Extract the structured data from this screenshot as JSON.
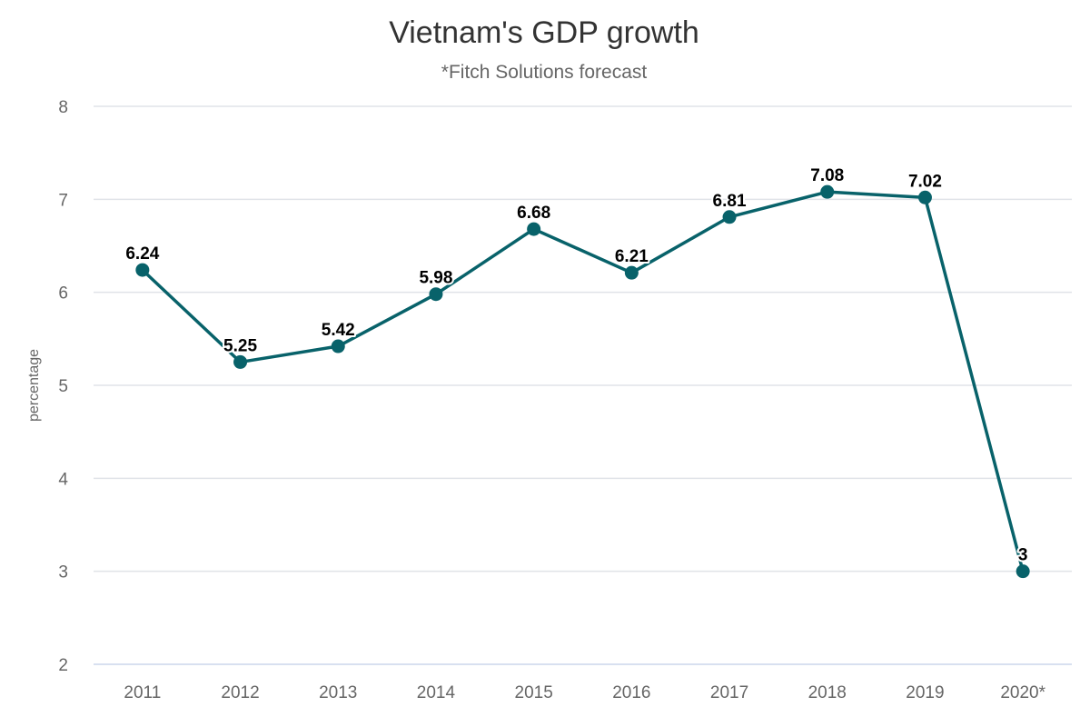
{
  "chart_data": {
    "type": "line",
    "title": "Vietnam's GDP growth",
    "subtitle": "*Fitch Solutions forecast",
    "xlabel": "",
    "ylabel": "percentage",
    "categories": [
      "2011",
      "2012",
      "2013",
      "2014",
      "2015",
      "2016",
      "2017",
      "2018",
      "2019",
      "2020*"
    ],
    "series": [
      {
        "name": "GDP growth",
        "values": [
          6.24,
          5.25,
          5.42,
          5.98,
          6.68,
          6.21,
          6.81,
          7.08,
          7.02,
          3
        ],
        "labels": [
          "6.24",
          "5.25",
          "5.42",
          "5.98",
          "6.68",
          "6.21",
          "6.81",
          "7.08",
          "7.02",
          "3"
        ]
      }
    ],
    "ylim": [
      2,
      8
    ],
    "yticks": [
      "2",
      "3",
      "4",
      "5",
      "6",
      "7",
      "8"
    ],
    "grid": true,
    "legend": "none"
  },
  "colors": {
    "series": "#08626a",
    "grid": "#e0e3e8",
    "axis": "#ccd6eb"
  }
}
